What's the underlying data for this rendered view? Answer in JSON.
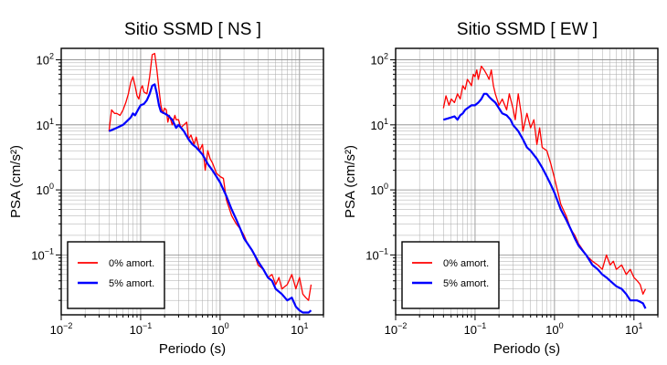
{
  "chart_data": [
    {
      "type": "line",
      "title": "Sitio SSMD [ NS ]",
      "xlabel": "Periodo (s)",
      "ylabel": "PSA (cm/s²)",
      "x_scale": "log",
      "y_scale": "log",
      "xlim": [
        0.01,
        20
      ],
      "ylim": [
        0.012,
        150
      ],
      "grid": true,
      "legend_position": "bottom-left",
      "xticks": [
        "10-2",
        "10-1",
        "100",
        "101"
      ],
      "yticks": [
        "10-1",
        "100",
        "101",
        "102"
      ],
      "series": [
        {
          "name": "0% amort.",
          "color": "#ff0000",
          "x": [
            0.04,
            0.043,
            0.047,
            0.05,
            0.055,
            0.06,
            0.065,
            0.07,
            0.075,
            0.08,
            0.085,
            0.09,
            0.095,
            0.1,
            0.105,
            0.11,
            0.12,
            0.13,
            0.14,
            0.15,
            0.16,
            0.17,
            0.18,
            0.19,
            0.2,
            0.21,
            0.22,
            0.23,
            0.25,
            0.27,
            0.28,
            0.3,
            0.32,
            0.35,
            0.38,
            0.4,
            0.43,
            0.47,
            0.5,
            0.55,
            0.6,
            0.65,
            0.7,
            0.75,
            0.8,
            0.9,
            1.0,
            1.1,
            1.2,
            1.4,
            1.6,
            1.8,
            2.0,
            2.2,
            2.5,
            2.8,
            3.0,
            3.5,
            4.0,
            4.5,
            5.0,
            5.5,
            6.0,
            7.0,
            8.0,
            9.0,
            10.0,
            11.0,
            12.0,
            13.0,
            14.0
          ],
          "y": [
            8.0,
            17.0,
            15.0,
            15.0,
            14.0,
            17.0,
            22.0,
            30.0,
            45.0,
            55.0,
            40.0,
            28.0,
            25.0,
            35.0,
            40.0,
            32.0,
            30.0,
            55.0,
            120.0,
            125.0,
            70.0,
            35.0,
            20.0,
            15.0,
            18.0,
            17.0,
            11.0,
            14.0,
            10.0,
            14.0,
            12.0,
            12.0,
            9.0,
            10.0,
            11.0,
            6.0,
            7.0,
            5.0,
            6.5,
            4.0,
            5.0,
            2.0,
            4.0,
            3.0,
            2.6,
            1.8,
            1.6,
            1.5,
            0.7,
            0.4,
            0.3,
            0.25,
            0.2,
            0.15,
            0.12,
            0.09,
            0.07,
            0.06,
            0.045,
            0.05,
            0.035,
            0.045,
            0.03,
            0.035,
            0.05,
            0.03,
            0.045,
            0.025,
            0.022,
            0.02,
            0.035
          ]
        },
        {
          "name": "5% amort.",
          "color": "#0000ff",
          "x": [
            0.04,
            0.045,
            0.05,
            0.055,
            0.06,
            0.065,
            0.07,
            0.075,
            0.08,
            0.085,
            0.09,
            0.095,
            0.1,
            0.11,
            0.12,
            0.13,
            0.14,
            0.15,
            0.16,
            0.17,
            0.18,
            0.2,
            0.22,
            0.25,
            0.28,
            0.3,
            0.35,
            0.4,
            0.45,
            0.5,
            0.6,
            0.7,
            0.8,
            0.9,
            1.0,
            1.2,
            1.4,
            1.6,
            1.8,
            2.0,
            2.5,
            3.0,
            3.5,
            4.0,
            4.5,
            5.0,
            6.0,
            7.0,
            8.0,
            9.0,
            10.0,
            11.0,
            12.0,
            13.0,
            14.0
          ],
          "y": [
            8.0,
            8.5,
            9.0,
            9.5,
            10.0,
            11.0,
            12.0,
            13.0,
            15.0,
            14.0,
            16.0,
            18.0,
            20.0,
            21.0,
            24.0,
            30.0,
            40.0,
            42.0,
            30.0,
            20.0,
            16.0,
            15.0,
            14.0,
            12.0,
            9.0,
            10.0,
            8.0,
            6.0,
            5.0,
            4.5,
            3.5,
            2.5,
            2.0,
            1.6,
            1.3,
            0.8,
            0.5,
            0.35,
            0.25,
            0.18,
            0.12,
            0.08,
            0.06,
            0.045,
            0.04,
            0.03,
            0.025,
            0.02,
            0.022,
            0.016,
            0.014,
            0.013,
            0.013,
            0.013,
            0.014
          ]
        }
      ]
    },
    {
      "type": "line",
      "title": "Sitio SSMD [ EW ]",
      "xlabel": "Periodo (s)",
      "ylabel": "PSA (cm/s²)",
      "x_scale": "log",
      "y_scale": "log",
      "xlim": [
        0.01,
        20
      ],
      "ylim": [
        0.012,
        150
      ],
      "grid": true,
      "legend_position": "bottom-left",
      "xticks": [
        "10-2",
        "10-1",
        "100",
        "101"
      ],
      "yticks": [
        "10-1",
        "100",
        "101",
        "102"
      ],
      "series": [
        {
          "name": "0% amort.",
          "color": "#ff0000",
          "x": [
            0.04,
            0.043,
            0.047,
            0.05,
            0.055,
            0.06,
            0.065,
            0.07,
            0.075,
            0.08,
            0.085,
            0.09,
            0.095,
            0.1,
            0.105,
            0.11,
            0.12,
            0.13,
            0.14,
            0.15,
            0.16,
            0.17,
            0.18,
            0.2,
            0.22,
            0.25,
            0.27,
            0.3,
            0.32,
            0.35,
            0.38,
            0.4,
            0.45,
            0.5,
            0.55,
            0.6,
            0.65,
            0.7,
            0.8,
            0.9,
            1.0,
            1.2,
            1.4,
            1.6,
            1.8,
            2.0,
            2.5,
            3.0,
            3.5,
            4.0,
            4.5,
            5.0,
            5.5,
            6.0,
            7.0,
            8.0,
            9.0,
            10.0,
            11.0,
            12.0,
            13.0,
            14.0
          ],
          "y": [
            18.0,
            28.0,
            20.0,
            25.0,
            22.0,
            30.0,
            25.0,
            40.0,
            35.0,
            50.0,
            45.0,
            40.0,
            60.0,
            55.0,
            70.0,
            50.0,
            80.0,
            70.0,
            60.0,
            50.0,
            70.0,
            40.0,
            30.0,
            20.0,
            25.0,
            17.0,
            30.0,
            18.0,
            12.0,
            30.0,
            15.0,
            8.0,
            15.0,
            9.0,
            12.0,
            5.0,
            9.0,
            4.5,
            4.0,
            2.5,
            1.5,
            0.6,
            0.4,
            0.25,
            0.2,
            0.15,
            0.1,
            0.08,
            0.07,
            0.06,
            0.1,
            0.07,
            0.08,
            0.06,
            0.07,
            0.05,
            0.06,
            0.045,
            0.04,
            0.035,
            0.025,
            0.03
          ]
        },
        {
          "name": "5% amort.",
          "color": "#0000ff",
          "x": [
            0.04,
            0.045,
            0.05,
            0.055,
            0.06,
            0.065,
            0.07,
            0.075,
            0.08,
            0.09,
            0.1,
            0.11,
            0.12,
            0.13,
            0.14,
            0.15,
            0.16,
            0.18,
            0.2,
            0.22,
            0.25,
            0.28,
            0.3,
            0.35,
            0.4,
            0.45,
            0.5,
            0.6,
            0.7,
            0.8,
            0.9,
            1.0,
            1.2,
            1.4,
            1.6,
            1.8,
            2.0,
            2.5,
            3.0,
            3.5,
            4.0,
            4.5,
            5.0,
            6.0,
            7.0,
            8.0,
            9.0,
            10.0,
            11.0,
            12.0,
            13.0,
            14.0
          ],
          "y": [
            12.0,
            12.5,
            13.0,
            13.5,
            12.0,
            14.0,
            15.0,
            17.0,
            18.0,
            20.0,
            20.0,
            22.0,
            25.0,
            30.0,
            30.0,
            27.0,
            25.0,
            22.0,
            18.0,
            15.0,
            14.0,
            12.0,
            10.0,
            8.0,
            6.0,
            4.5,
            4.0,
            3.0,
            2.2,
            1.6,
            1.2,
            0.9,
            0.5,
            0.35,
            0.25,
            0.18,
            0.14,
            0.1,
            0.07,
            0.06,
            0.05,
            0.045,
            0.04,
            0.033,
            0.03,
            0.025,
            0.02,
            0.02,
            0.02,
            0.019,
            0.018,
            0.015
          ]
        }
      ]
    }
  ]
}
